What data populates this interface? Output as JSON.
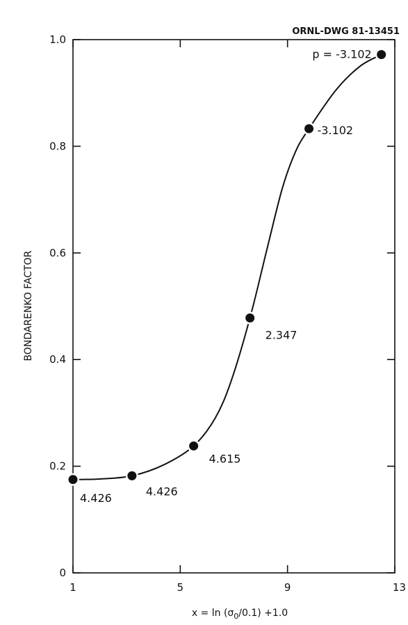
{
  "chart_data": {
    "type": "line",
    "drawing_id": "ORNL-DWG 81-13451",
    "ylabel": "BONDARENKO FACTOR",
    "xlabel_parts": {
      "prefix": "x = ln (",
      "sigma": "σ",
      "subscript": "0",
      "suffix": "/0.1) +1.0"
    },
    "xlim": [
      1,
      13
    ],
    "ylim": [
      0,
      1.0
    ],
    "x_ticks": [
      1,
      5,
      9,
      13
    ],
    "x_tick_labels": [
      "1",
      "5",
      "9",
      "13"
    ],
    "y_ticks": [
      0,
      0.2,
      0.4,
      0.6,
      0.8,
      1.0
    ],
    "y_tick_labels": [
      "0",
      "0.2",
      "0.4",
      "0.6",
      "0.8",
      "1.0"
    ],
    "grid": false,
    "points": [
      {
        "x": 1.0,
        "y": 0.175,
        "label": "4.426"
      },
      {
        "x": 3.2,
        "y": 0.182,
        "label": "4.426"
      },
      {
        "x": 5.5,
        "y": 0.238,
        "label": "4.615"
      },
      {
        "x": 7.6,
        "y": 0.478,
        "label": "2.347"
      },
      {
        "x": 9.8,
        "y": 0.833,
        "label": "-3.102"
      },
      {
        "x": 12.5,
        "y": 0.972,
        "label": "p = -3.102"
      }
    ],
    "curve_points": [
      {
        "x": 1.0,
        "y": 0.175
      },
      {
        "x": 2.0,
        "y": 0.176
      },
      {
        "x": 3.2,
        "y": 0.182
      },
      {
        "x": 4.4,
        "y": 0.203
      },
      {
        "x": 5.5,
        "y": 0.238
      },
      {
        "x": 6.3,
        "y": 0.29
      },
      {
        "x": 6.9,
        "y": 0.36
      },
      {
        "x": 7.6,
        "y": 0.478
      },
      {
        "x": 8.2,
        "y": 0.6
      },
      {
        "x": 8.8,
        "y": 0.72
      },
      {
        "x": 9.3,
        "y": 0.79
      },
      {
        "x": 9.8,
        "y": 0.833
      },
      {
        "x": 10.8,
        "y": 0.905
      },
      {
        "x": 11.7,
        "y": 0.95
      },
      {
        "x": 12.5,
        "y": 0.972
      }
    ]
  }
}
